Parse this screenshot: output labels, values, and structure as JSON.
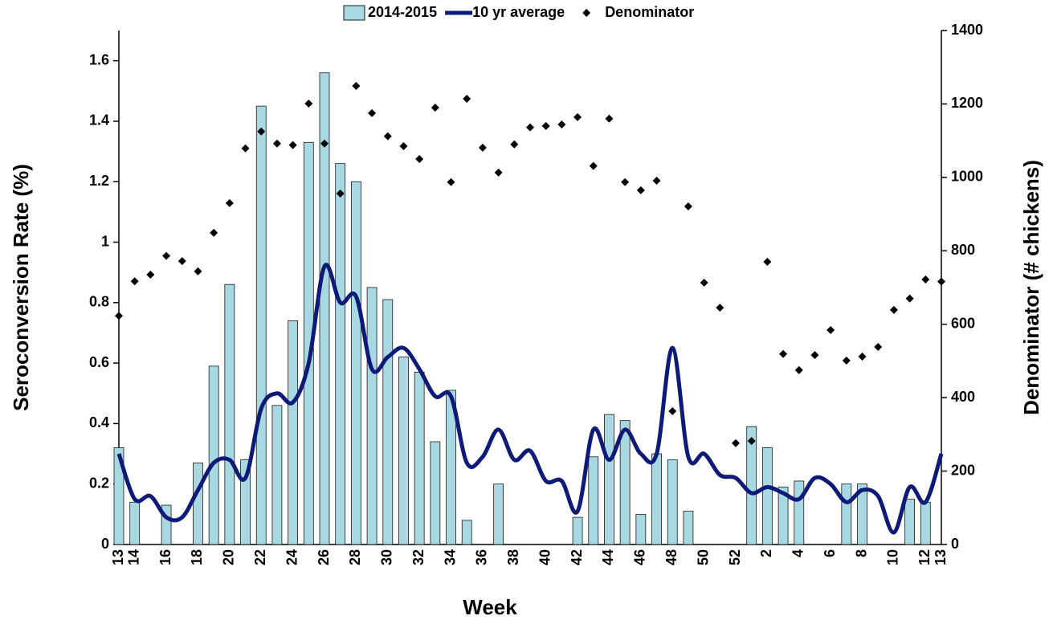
{
  "chart_data": {
    "type": "bar-line-scatter",
    "x_label": "Week",
    "y_label": "Seroconversion Rate (%)",
    "y2_label": "Denominator (# chickens)",
    "categories": [
      "13",
      "14",
      null,
      "16",
      null,
      "18",
      null,
      "20",
      null,
      "22",
      null,
      "24",
      null,
      "26",
      null,
      "28",
      null,
      "30",
      null,
      "32",
      null,
      "34",
      null,
      "36",
      null,
      "38",
      null,
      "40",
      null,
      "42",
      null,
      "44",
      null,
      "46",
      null,
      "48",
      null,
      "50",
      null,
      "52",
      null,
      "2",
      null,
      "4",
      null,
      "6",
      null,
      "8",
      null,
      "10",
      null,
      "12",
      "13"
    ],
    "ylim": [
      0,
      1.7
    ],
    "yticks": [
      0,
      0.2,
      0.4,
      0.6,
      0.8,
      1,
      1.2,
      1.4,
      1.6
    ],
    "y2lim": [
      0,
      1400
    ],
    "y2ticks": [
      0,
      200,
      400,
      600,
      800,
      1000,
      1200,
      1400
    ],
    "grid": false,
    "series": [
      {
        "name": "2014-2015",
        "type": "bar",
        "color": "#a8d8e2",
        "values": [
          0.32,
          0.14,
          0,
          0.13,
          0,
          0.27,
          0.59,
          0.86,
          0.28,
          1.45,
          0.46,
          0.74,
          1.33,
          1.56,
          1.26,
          1.2,
          0.85,
          0.81,
          0.62,
          0.57,
          0.34,
          0.51,
          0.08,
          0,
          0.2,
          0,
          0,
          0,
          0,
          0.09,
          0.29,
          0.43,
          0.41,
          0.1,
          0.3,
          0.28,
          0.11,
          0,
          0,
          0,
          0.39,
          0.32,
          0.19,
          0.21,
          0,
          0,
          0.2,
          0.2,
          0,
          0,
          0.15,
          0.14,
          0
        ]
      },
      {
        "name": "10 yr average",
        "type": "line",
        "color": "#0d1a78",
        "values": [
          0.3,
          0.15,
          0.16,
          0.09,
          0.09,
          0.18,
          0.27,
          0.28,
          0.22,
          0.45,
          0.5,
          0.47,
          0.6,
          0.92,
          0.8,
          0.82,
          0.58,
          0.62,
          0.65,
          0.58,
          0.49,
          0.49,
          0.27,
          0.29,
          0.38,
          0.28,
          0.31,
          0.21,
          0.21,
          0.11,
          0.38,
          0.28,
          0.38,
          0.3,
          0.3,
          0.65,
          0.29,
          0.3,
          0.23,
          0.22,
          0.17,
          0.19,
          0.17,
          0.15,
          0.22,
          0.2,
          0.14,
          0.18,
          0.16,
          0.04,
          0.19,
          0.14,
          0.3
        ]
      },
      {
        "name": "Denominator",
        "type": "scatter",
        "axis": "y2",
        "color": "#000000",
        "values": [
          623,
          717,
          735,
          786,
          772,
          744,
          849,
          930,
          1079,
          1125,
          1092,
          1088,
          1201,
          1092,
          956,
          1249,
          1175,
          1112,
          1085,
          1050,
          1190,
          987,
          1214,
          1081,
          1013,
          1090,
          1136,
          1140,
          1144,
          1164,
          1031,
          1160,
          987,
          965,
          991,
          363,
          921,
          713,
          645,
          276,
          282,
          770,
          519,
          475,
          516,
          584,
          501,
          512,
          538,
          639,
          670,
          722,
          716
        ]
      }
    ]
  }
}
